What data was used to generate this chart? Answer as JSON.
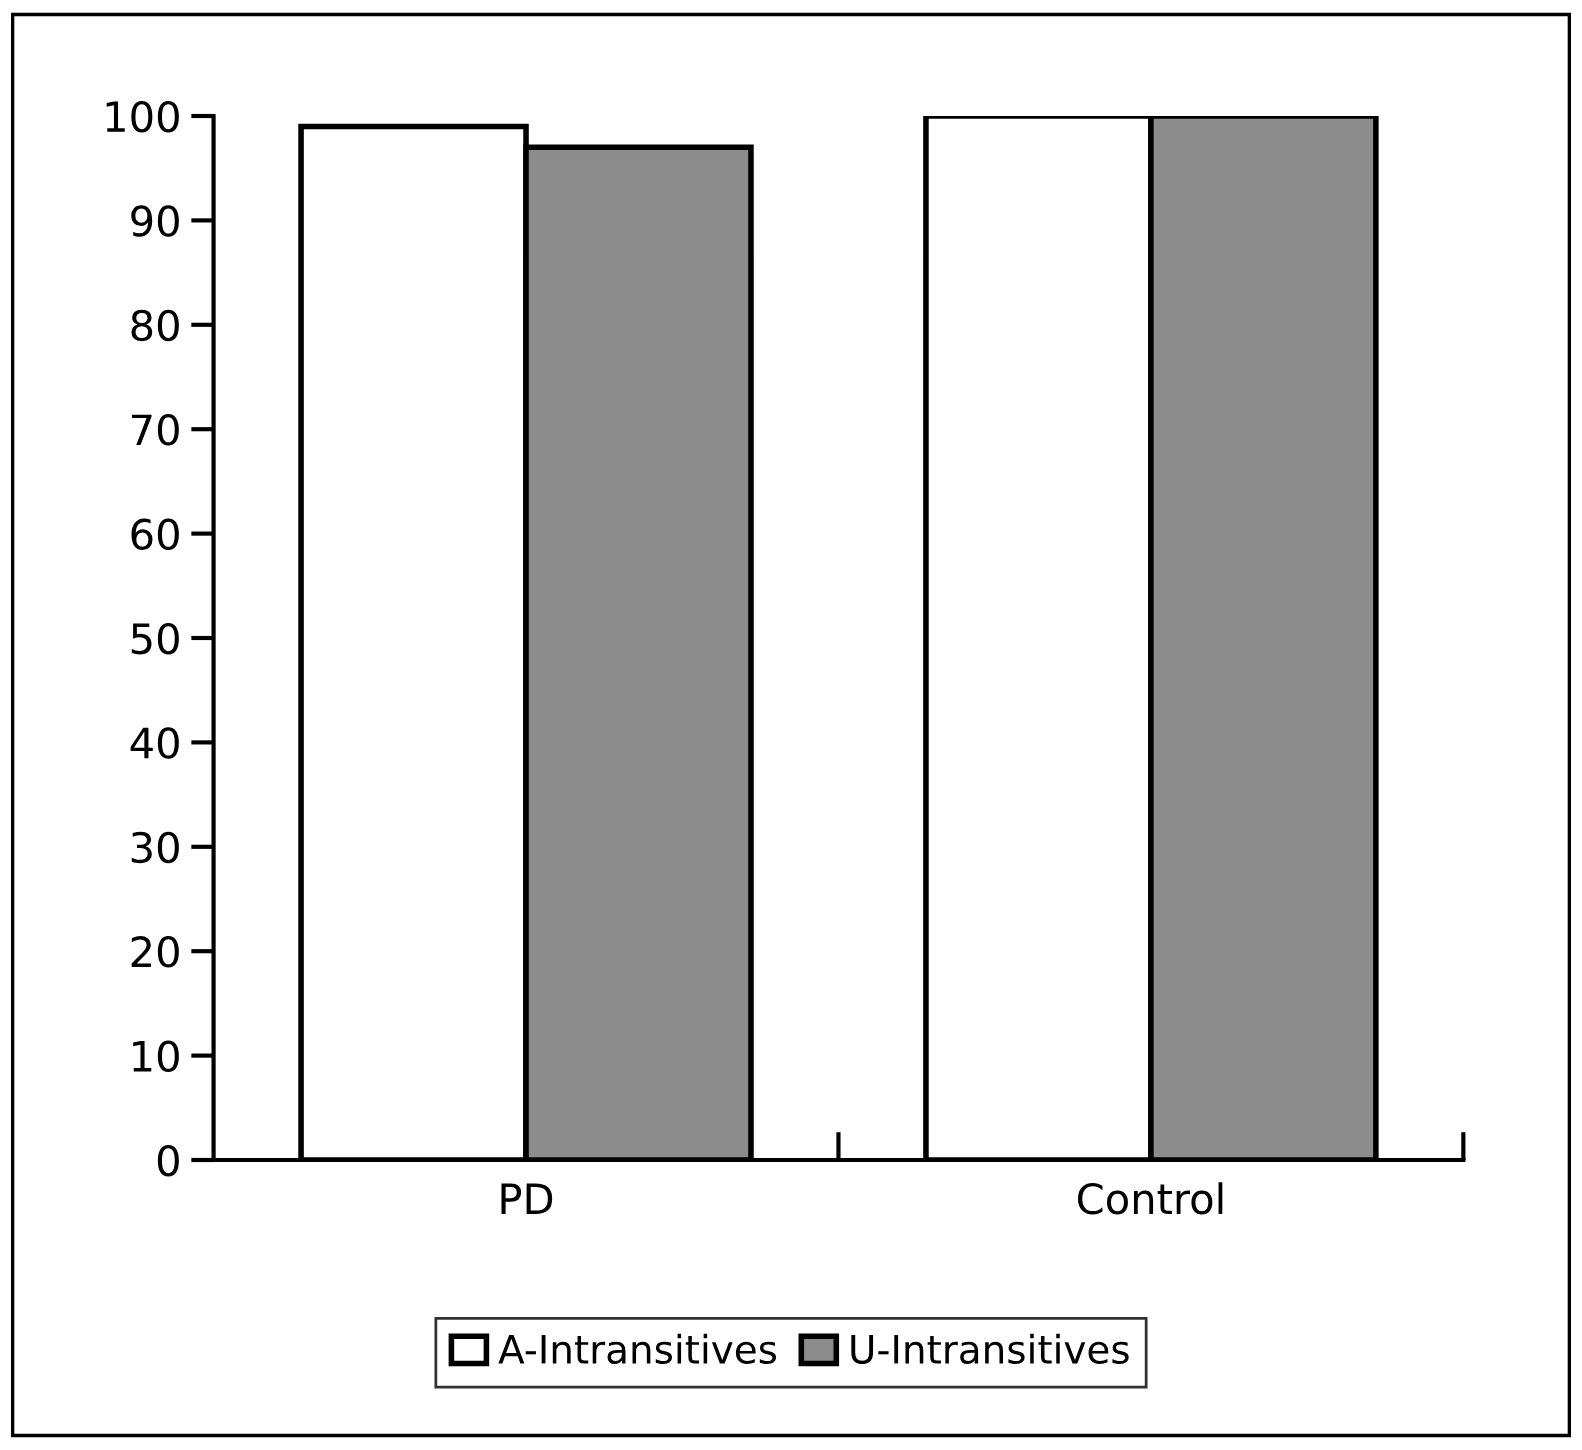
{
  "chart_data": {
    "type": "bar",
    "categories": [
      "PD",
      "Control"
    ],
    "series": [
      {
        "name": "A-Intransitives",
        "color": "#ffffff",
        "values": [
          99,
          100
        ]
      },
      {
        "name": "U-Intransitives",
        "color": "#8c8c8c",
        "values": [
          97,
          100
        ]
      }
    ],
    "ylim": [
      0,
      100
    ],
    "yticks": [
      0,
      10,
      20,
      30,
      40,
      50,
      60,
      70,
      80,
      90,
      100
    ],
    "grid": false,
    "legend": "bottom"
  }
}
